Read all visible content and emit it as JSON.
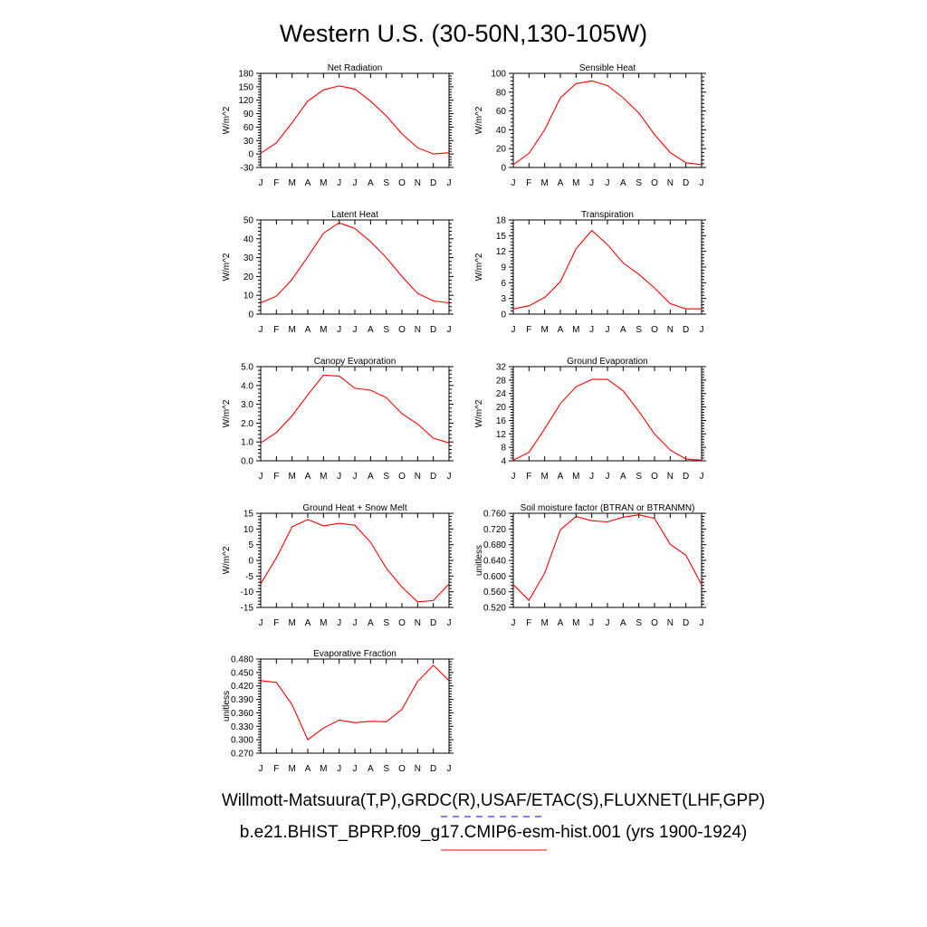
{
  "figure": {
    "title": "Western U.S. (30-50N,130-105W)",
    "legend_obs": "Willmott-Matsuura(T,P),GRDC(R),USAF/ETAC(S),FLUXNET(LHF,GPP)",
    "legend_model": "b.e21.BHIST_BPRP.f09_g17.CMIP6-esm-hist.001 (yrs 1900-1924)",
    "colors": {
      "model": "#ff0000",
      "obs": "#0000ff"
    }
  },
  "chart_data": [
    {
      "type": "line",
      "title": "Net Radiation",
      "ylabel": "W/m^2",
      "x": [
        "J",
        "F",
        "M",
        "A",
        "M",
        "J",
        "J",
        "A",
        "S",
        "O",
        "N",
        "D",
        "J"
      ],
      "ylim": [
        -30,
        180
      ],
      "yticks": [
        "-30",
        "0",
        "30",
        "60",
        "90",
        "120",
        "150",
        "180"
      ],
      "series": [
        {
          "values": [
            2,
            25,
            70,
            118,
            143,
            152,
            145,
            118,
            85,
            45,
            14,
            0,
            3
          ]
        }
      ]
    },
    {
      "type": "line",
      "title": "Sensible Heat",
      "ylabel": "W/m^2",
      "x": [
        "J",
        "F",
        "M",
        "A",
        "M",
        "J",
        "J",
        "A",
        "S",
        "O",
        "N",
        "D",
        "J"
      ],
      "ylim": [
        0,
        100
      ],
      "yticks": [
        "0",
        "20",
        "40",
        "60",
        "80",
        "100"
      ],
      "series": [
        {
          "values": [
            3,
            15,
            40,
            74,
            89,
            92,
            87,
            74,
            58,
            35,
            16,
            5,
            3
          ]
        }
      ]
    },
    {
      "type": "line",
      "title": "Latent Heat",
      "ylabel": "W/m^2",
      "x": [
        "J",
        "F",
        "M",
        "A",
        "M",
        "J",
        "J",
        "A",
        "S",
        "O",
        "N",
        "D",
        "J"
      ],
      "ylim": [
        0,
        50
      ],
      "yticks": [
        "0",
        "10",
        "20",
        "30",
        "40",
        "50"
      ],
      "series": [
        {
          "values": [
            6,
            9.5,
            18.5,
            30.5,
            43,
            48.5,
            45.5,
            38.5,
            30,
            20,
            11,
            7,
            6
          ]
        }
      ]
    },
    {
      "type": "line",
      "title": "Transpiration",
      "ylabel": "W/m^2",
      "x": [
        "J",
        "F",
        "M",
        "A",
        "M",
        "J",
        "J",
        "A",
        "S",
        "O",
        "N",
        "D",
        "J"
      ],
      "ylim": [
        0,
        18
      ],
      "yticks": [
        "0",
        "3",
        "6",
        "9",
        "12",
        "15",
        "18"
      ],
      "series": [
        {
          "values": [
            1,
            1.6,
            3.2,
            6.2,
            12.5,
            16,
            13.3,
            9.8,
            7.6,
            5,
            2,
            1,
            1
          ]
        }
      ]
    },
    {
      "type": "line",
      "title": "Canopy Evaporation",
      "ylabel": "W/m^2",
      "x": [
        "J",
        "F",
        "M",
        "A",
        "M",
        "J",
        "J",
        "A",
        "S",
        "O",
        "N",
        "D",
        "J"
      ],
      "ylim": [
        0,
        5
      ],
      "yticks": [
        "0.0",
        "1.0",
        "2.0",
        "3.0",
        "4.0",
        "5.0"
      ],
      "series": [
        {
          "values": [
            0.95,
            1.5,
            2.4,
            3.5,
            4.55,
            4.5,
            3.85,
            3.75,
            3.35,
            2.5,
            1.95,
            1.2,
            0.95
          ]
        }
      ]
    },
    {
      "type": "line",
      "title": "Ground Evaporation",
      "ylabel": "W/m^2",
      "x": [
        "J",
        "F",
        "M",
        "A",
        "M",
        "J",
        "J",
        "A",
        "S",
        "O",
        "N",
        "D",
        "J"
      ],
      "ylim": [
        4,
        32
      ],
      "yticks": [
        "4",
        "8",
        "12",
        "16",
        "20",
        "24",
        "28",
        "32"
      ],
      "series": [
        {
          "values": [
            4.2,
            6.5,
            13.5,
            21,
            26,
            28.2,
            28.2,
            24.8,
            18.7,
            12,
            7.2,
            4.5,
            4.2
          ]
        }
      ]
    },
    {
      "type": "line",
      "title": "Ground Heat + Snow Melt",
      "ylabel": "W/m^2",
      "x": [
        "J",
        "F",
        "M",
        "A",
        "M",
        "J",
        "J",
        "A",
        "S",
        "O",
        "N",
        "D",
        "J"
      ],
      "ylim": [
        -15,
        15
      ],
      "yticks": [
        "-15",
        "-10",
        "-5",
        "0",
        "5",
        "10",
        "15"
      ],
      "series": [
        {
          "values": [
            -7.5,
            0.8,
            10.7,
            13,
            11,
            11.8,
            11.2,
            5.8,
            -2.5,
            -8.5,
            -13.2,
            -12.8,
            -7.5
          ]
        }
      ]
    },
    {
      "type": "line",
      "title": "Soil moisture factor (BTRAN or BTRANMN)",
      "ylabel": "unitless",
      "x": [
        "J",
        "F",
        "M",
        "A",
        "M",
        "J",
        "J",
        "A",
        "S",
        "O",
        "N",
        "D",
        "J"
      ],
      "ylim": [
        0.52,
        0.76
      ],
      "yticks": [
        "0.520",
        "0.560",
        "0.600",
        "0.640",
        "0.680",
        "0.720",
        "0.760"
      ],
      "series": [
        {
          "values": [
            0.578,
            0.538,
            0.608,
            0.718,
            0.752,
            0.741,
            0.738,
            0.75,
            0.756,
            0.747,
            0.681,
            0.653,
            0.578
          ]
        }
      ]
    },
    {
      "type": "line",
      "title": "Evaporative Fraction",
      "ylabel": "unitless",
      "x": [
        "J",
        "F",
        "M",
        "A",
        "M",
        "J",
        "J",
        "A",
        "S",
        "O",
        "N",
        "D",
        "J"
      ],
      "ylim": [
        0.27,
        0.48
      ],
      "yticks": [
        "0.270",
        "0.300",
        "0.330",
        "0.360",
        "0.390",
        "0.420",
        "0.450",
        "0.480"
      ],
      "series": [
        {
          "values": [
            0.432,
            0.428,
            0.378,
            0.3,
            0.326,
            0.344,
            0.338,
            0.341,
            0.34,
            0.368,
            0.43,
            0.466,
            0.432
          ]
        }
      ]
    }
  ]
}
